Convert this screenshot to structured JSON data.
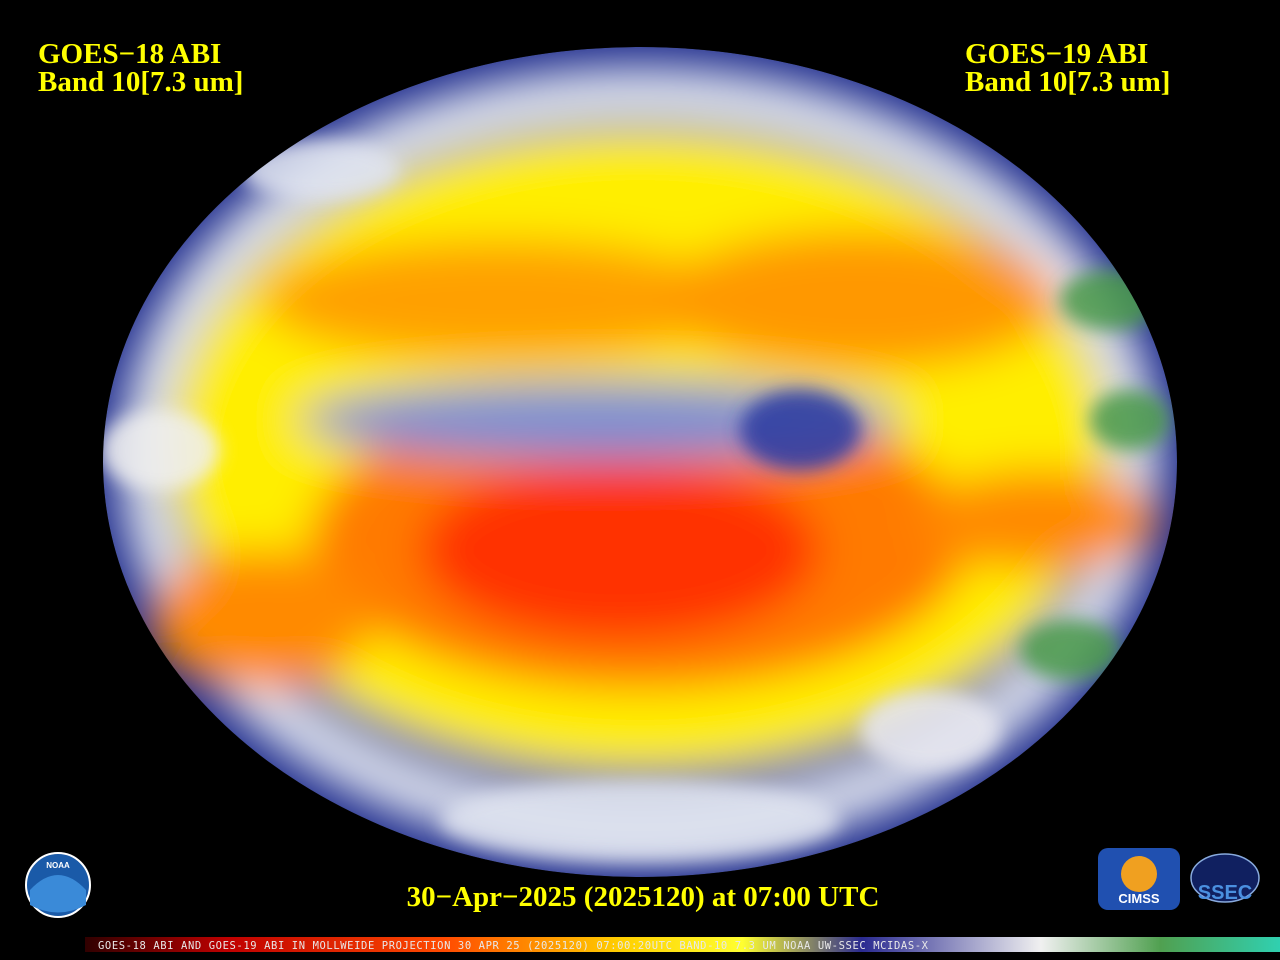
{
  "header": {
    "left": {
      "line1": "GOES−18 ABI",
      "line2": "Band 10[7.3 um]"
    },
    "right": {
      "line1": "GOES−19 ABI",
      "line2": "Band 10[7.3 um]"
    }
  },
  "caption": "30−Apr−2025 (2025120) at 07:00 UTC",
  "footer": "GOES-18 ABI AND GOES-19 ABI IN MOLLWEIDE PROJECTION 30 APR 25 (2025120) 07:00:20UTC BAND-10 7.3 UM NOAA UW-SSEC MCIDAS-X",
  "logos": {
    "noaa": "NOAA",
    "cimss": "CIMSS",
    "ssec": "SSEC"
  }
}
